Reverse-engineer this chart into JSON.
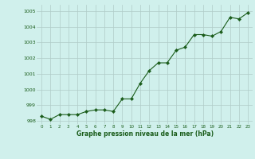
{
  "x": [
    0,
    1,
    2,
    3,
    4,
    5,
    6,
    7,
    8,
    9,
    10,
    11,
    12,
    13,
    14,
    15,
    16,
    17,
    18,
    19,
    20,
    21,
    22,
    23
  ],
  "y": [
    998.3,
    998.1,
    998.4,
    998.4,
    998.4,
    998.6,
    998.7,
    998.7,
    998.6,
    999.4,
    999.4,
    1000.4,
    1001.2,
    1001.7,
    1001.7,
    1002.5,
    1002.7,
    1003.5,
    1003.5,
    1003.4,
    1003.7,
    1004.6,
    1004.5,
    1004.9
  ],
  "line_color": "#1a5c1a",
  "marker_color": "#1a5c1a",
  "bg_color": "#d0f0ec",
  "grid_color": "#b0ccc8",
  "xlabel": "Graphe pression niveau de la mer (hPa)",
  "xlabel_color": "#1a5c1a",
  "tick_color": "#1a5c1a",
  "ylim": [
    997.8,
    1005.4
  ],
  "yticks": [
    998,
    999,
    1000,
    1001,
    1002,
    1003,
    1004,
    1005
  ],
  "xlim": [
    -0.5,
    23.5
  ],
  "xticks": [
    0,
    1,
    2,
    3,
    4,
    5,
    6,
    7,
    8,
    9,
    10,
    11,
    12,
    13,
    14,
    15,
    16,
    17,
    18,
    19,
    20,
    21,
    22,
    23
  ]
}
